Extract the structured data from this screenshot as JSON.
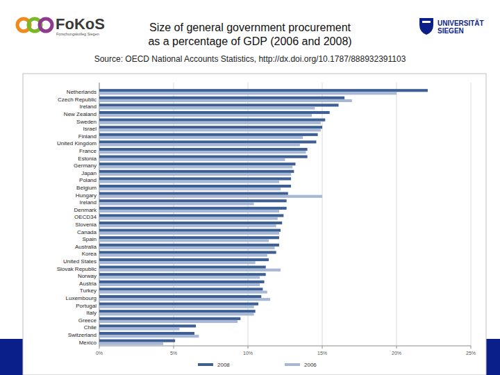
{
  "header": {
    "logo_left": "FoKoS",
    "logo_left_sub": "Forschungskolleg Siegen",
    "logo_right": [
      "UNIVERSITÄT",
      "SIEGEN"
    ]
  },
  "chart_data": {
    "type": "bar",
    "orientation": "horizontal",
    "title": "Size of general government procurement\nas a percentage of GDP (2006 and 2008)",
    "subtitle": "Source: OECD National Accounts Statistics, http://dx.doi.org/10.1787/888932391103",
    "categories": [
      "Netherlands",
      "Czech Republic",
      "Ireland",
      "New Zealand",
      "Sweden",
      "Israel",
      "Finland",
      "United Kingdom",
      "France",
      "Estonia",
      "Germany",
      "Japan",
      "Poland",
      "Belgium",
      "Hungary",
      "Ireland",
      "Denmark",
      "OECD34",
      "Slovenia",
      "Canada",
      "Spain",
      "Australia",
      "Korea",
      "United States",
      "Slovak Republic",
      "Norway",
      "Austria",
      "Turkey",
      "Luxembourg",
      "Portugal",
      "Italy",
      "Greece",
      "Chile",
      "Switzerland",
      "Mexico"
    ],
    "series": [
      {
        "name": "2008",
        "color": "#3d5f93",
        "values": [
          22.1,
          16.5,
          16.1,
          15.5,
          15.2,
          15.0,
          14.7,
          14.6,
          14.0,
          14.0,
          13.2,
          13.1,
          12.9,
          12.9,
          12.7,
          12.6,
          12.6,
          12.4,
          12.3,
          12.2,
          12.1,
          12.1,
          11.9,
          11.4,
          11.2,
          11.2,
          11.1,
          11.0,
          10.9,
          10.7,
          10.5,
          9.5,
          6.5,
          6.4,
          5.1
        ]
      },
      {
        "name": "2006",
        "color": "#a6b8d6",
        "values": [
          20.0,
          17.0,
          14.5,
          14.3,
          14.9,
          14.9,
          13.7,
          13.5,
          13.9,
          12.5,
          13.0,
          12.9,
          12.1,
          12.2,
          15.0,
          10.4,
          12.1,
          12.0,
          11.9,
          12.1,
          11.4,
          11.8,
          11.3,
          10.5,
          12.2,
          10.8,
          10.8,
          11.3,
          11.5,
          10.4,
          10.4,
          9.3,
          5.4,
          6.7,
          4.3
        ]
      }
    ],
    "xlim": [
      0,
      25
    ],
    "xticks": [
      {
        "value": 0,
        "label": "0%"
      },
      {
        "value": 5,
        "label": "5%"
      },
      {
        "value": 10,
        "label": "10%"
      },
      {
        "value": 15,
        "label": "15%"
      },
      {
        "value": 20,
        "label": "20%"
      },
      {
        "value": 25,
        "label": "25%"
      }
    ],
    "grid": true,
    "legend": "bottom"
  }
}
